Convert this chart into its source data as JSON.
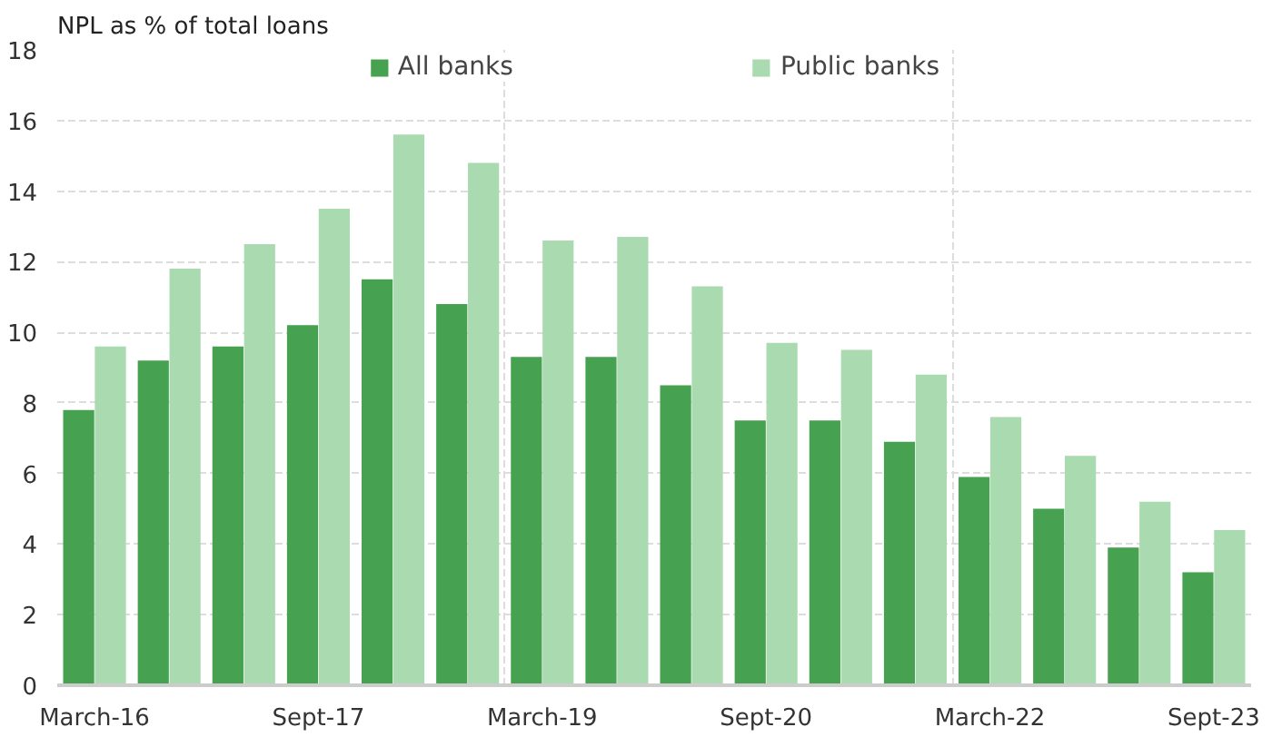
{
  "chart_data": {
    "type": "bar",
    "ylabel": "NPL as % of total loans",
    "categories": [
      "March-16",
      null,
      null,
      "Sept-17",
      null,
      null,
      "March-19",
      null,
      null,
      "Sept-20",
      null,
      null,
      "March-22",
      null,
      null,
      "Sept-23"
    ],
    "series": [
      {
        "name": "All banks",
        "color": "#46a150",
        "values": [
          7.8,
          9.2,
          9.6,
          10.2,
          11.5,
          10.8,
          9.3,
          9.3,
          8.5,
          7.5,
          7.5,
          6.9,
          5.9,
          5.0,
          3.9,
          3.2
        ]
      },
      {
        "name": "Public banks",
        "color": "#a9dab0",
        "values": [
          9.6,
          11.8,
          12.5,
          13.5,
          15.6,
          14.8,
          12.6,
          12.7,
          11.3,
          9.7,
          9.5,
          8.8,
          7.6,
          6.5,
          5.2,
          4.4
        ]
      }
    ],
    "ylim": [
      0,
      18
    ],
    "yticks": [
      0,
      2,
      4,
      6,
      8,
      10,
      12,
      14,
      16,
      18
    ],
    "grid": true,
    "legend": "top"
  }
}
